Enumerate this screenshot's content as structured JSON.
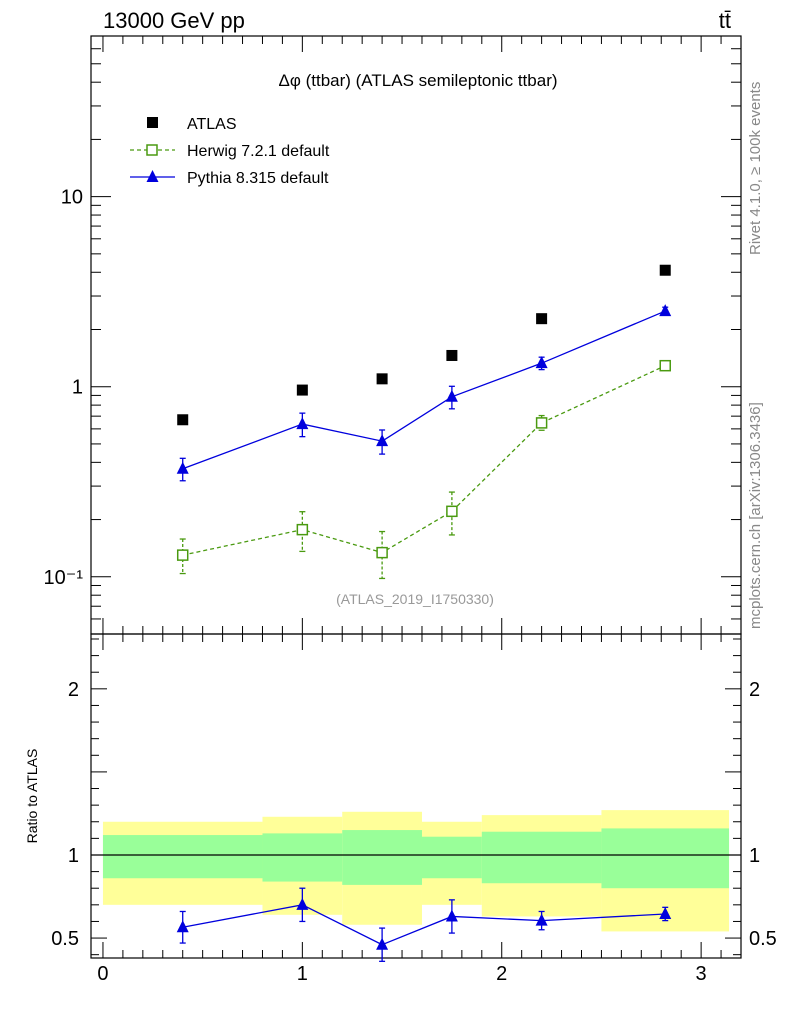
{
  "header": {
    "energy": "13000 GeV pp",
    "process": "tt̄"
  },
  "side_labels": {
    "rivet": "Rivet 4.1.0, ≥ 100k events",
    "mcplots": "mcplots.cern.ch [arXiv:1306.3436]"
  },
  "chart_data": [
    {
      "type": "scatter",
      "title": "Δφ (ttbar) (ATLAS semileptonic ttbar)",
      "watermark": "(ATLAS_2019_I1750330)",
      "yscale": "log",
      "xlim": [
        -0.06,
        3.2
      ],
      "ylim": [
        0.05,
        70
      ],
      "yticks": [
        {
          "v": 10,
          "label": "10"
        },
        {
          "v": 1,
          "label": "1"
        },
        {
          "v": 0.1,
          "label": "10⁻¹"
        }
      ],
      "legend_position": "top-left",
      "series": [
        {
          "name": "ATLAS",
          "color": "#000000",
          "marker": "square-filled",
          "x": [
            0.4,
            1.0,
            1.4,
            1.75,
            2.2,
            2.82
          ],
          "y": [
            0.67,
            0.96,
            1.1,
            1.46,
            2.28,
            4.1
          ]
        },
        {
          "name": "Herwig 7.2.1 default",
          "color": "#4a9a10",
          "marker": "square-open",
          "dashed": true,
          "x": [
            0.4,
            1.0,
            1.4,
            1.75,
            2.2,
            2.82
          ],
          "y": [
            0.13,
            0.177,
            0.134,
            0.221,
            0.645,
            1.29
          ],
          "err_lo": [
            0.026,
            0.041,
            0.036,
            0.055,
            0.055,
            0.05
          ],
          "err_hi": [
            0.028,
            0.043,
            0.039,
            0.058,
            0.06,
            0.05
          ]
        },
        {
          "name": "Pythia 8.315 default",
          "color": "#0000dd",
          "marker": "triangle",
          "x": [
            0.4,
            1.0,
            1.4,
            1.75,
            2.2,
            2.82
          ],
          "y": [
            0.37,
            0.636,
            0.517,
            0.885,
            1.33,
            2.5
          ],
          "err_lo": [
            0.05,
            0.09,
            0.075,
            0.12,
            0.1,
            0.12
          ],
          "err_hi": [
            0.05,
            0.09,
            0.075,
            0.12,
            0.1,
            0.12
          ]
        }
      ]
    },
    {
      "type": "line",
      "ylabel": "Ratio to ATLAS",
      "xlim": [
        -0.06,
        3.2
      ],
      "ylim": [
        0.38,
        2.33
      ],
      "xticks": [
        0,
        1,
        2,
        3
      ],
      "yticks": [
        0.5,
        1,
        2
      ],
      "reference": 1,
      "bands": [
        {
          "x0": 0.0,
          "x1": 0.8,
          "green": [
            0.86,
            1.12
          ],
          "yellow": [
            0.7,
            1.2
          ]
        },
        {
          "x0": 0.8,
          "x1": 1.2,
          "green": [
            0.84,
            1.13
          ],
          "yellow": [
            0.64,
            1.23
          ]
        },
        {
          "x0": 1.2,
          "x1": 1.6,
          "green": [
            0.82,
            1.15
          ],
          "yellow": [
            0.58,
            1.26
          ]
        },
        {
          "x0": 1.6,
          "x1": 1.9,
          "green": [
            0.86,
            1.11
          ],
          "yellow": [
            0.7,
            1.2
          ]
        },
        {
          "x0": 1.9,
          "x1": 2.5,
          "green": [
            0.83,
            1.14
          ],
          "yellow": [
            0.63,
            1.24
          ]
        },
        {
          "x0": 2.5,
          "x1": 3.14,
          "green": [
            0.8,
            1.16
          ],
          "yellow": [
            0.54,
            1.27
          ]
        }
      ],
      "series": [
        {
          "name": "Pythia 8.315 default",
          "color": "#0000dd",
          "x": [
            0.4,
            1.0,
            1.4,
            1.75,
            2.2,
            2.82
          ],
          "y": [
            0.565,
            0.7,
            0.46,
            0.63,
            0.605,
            0.645
          ],
          "err_lo": [
            0.095,
            0.1,
            0.1,
            0.1,
            0.055,
            0.04
          ],
          "err_hi": [
            0.095,
            0.1,
            0.1,
            0.1,
            0.055,
            0.04
          ]
        }
      ]
    }
  ]
}
